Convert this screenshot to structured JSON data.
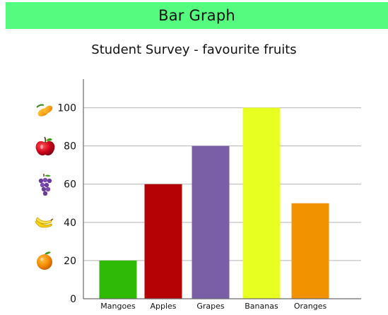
{
  "header": {
    "title": "Bar Graph",
    "color": "#55fb7f"
  },
  "chart_data": {
    "type": "bar",
    "title": "Student Survey - favourite fruits",
    "xlabel": "",
    "ylabel": "",
    "categories": [
      "Mangoes",
      "Apples",
      "Grapes",
      "Bananas",
      "Oranges"
    ],
    "values": [
      20,
      60,
      80,
      100,
      50
    ],
    "bar_colors": [
      "#2fba07",
      "#b50205",
      "#7a5fa7",
      "#e8ff22",
      "#f19300"
    ],
    "ylim": [
      0,
      115
    ],
    "yticks": [
      0,
      20,
      40,
      60,
      80,
      100
    ],
    "ytick_icons": [
      "orange-icon",
      "banana-icon",
      "grapes-icon",
      "apple-icon",
      "mango-icon"
    ],
    "grid": true,
    "legend": "none"
  }
}
